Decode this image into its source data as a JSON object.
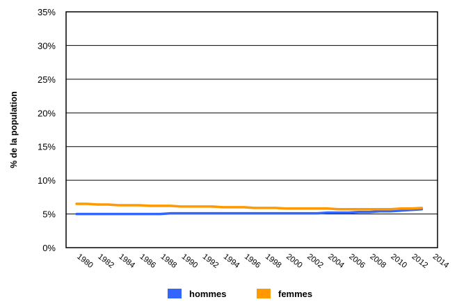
{
  "chart_data": {
    "type": "line",
    "title": "",
    "xlabel": "",
    "ylabel": "% de la population",
    "ylim": [
      0,
      35
    ],
    "yticks": [
      "0%",
      "5%",
      "10%",
      "15%",
      "20%",
      "25%",
      "30%",
      "35%"
    ],
    "ytick_values": [
      0,
      5,
      10,
      15,
      20,
      25,
      30,
      35
    ],
    "xticks": [
      "1980",
      "1982",
      "1984",
      "1986",
      "1988",
      "1990",
      "1992",
      "1994",
      "1996",
      "1998",
      "2000",
      "2002",
      "2004",
      "2006",
      "2008",
      "2010",
      "2012",
      "2014"
    ],
    "x": [
      1980,
      1981,
      1982,
      1983,
      1984,
      1985,
      1986,
      1987,
      1988,
      1989,
      1990,
      1991,
      1992,
      1993,
      1994,
      1995,
      1996,
      1997,
      1998,
      1999,
      2000,
      2001,
      2002,
      2003,
      2004,
      2005,
      2006,
      2007,
      2008,
      2009,
      2010,
      2011,
      2012,
      2013
    ],
    "grid": true,
    "legend_position": "bottom",
    "series": [
      {
        "name": "hommes",
        "color": "#3366ff",
        "values": [
          5.0,
          5.0,
          5.0,
          5.0,
          5.0,
          5.0,
          5.0,
          5.0,
          5.0,
          5.1,
          5.1,
          5.1,
          5.1,
          5.1,
          5.1,
          5.1,
          5.1,
          5.1,
          5.1,
          5.1,
          5.1,
          5.1,
          5.1,
          5.1,
          5.2,
          5.2,
          5.2,
          5.3,
          5.3,
          5.4,
          5.4,
          5.5,
          5.6,
          5.7
        ]
      },
      {
        "name": "femmes",
        "color": "#ff9900",
        "values": [
          6.5,
          6.5,
          6.4,
          6.4,
          6.3,
          6.3,
          6.3,
          6.2,
          6.2,
          6.2,
          6.1,
          6.1,
          6.1,
          6.1,
          6.0,
          6.0,
          6.0,
          5.9,
          5.9,
          5.9,
          5.8,
          5.8,
          5.8,
          5.8,
          5.8,
          5.7,
          5.7,
          5.7,
          5.7,
          5.7,
          5.7,
          5.8,
          5.8,
          5.9
        ]
      }
    ]
  }
}
